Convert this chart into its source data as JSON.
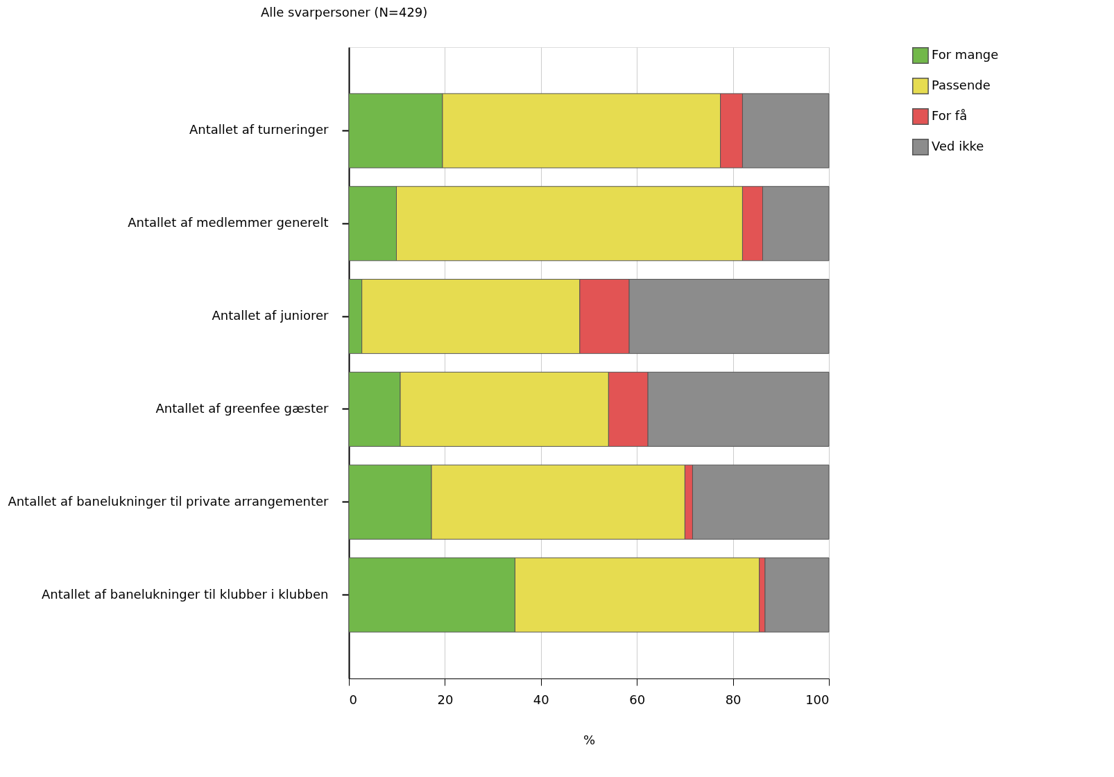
{
  "chart_data": {
    "type": "bar",
    "orientation": "horizontal",
    "stacked": true,
    "title": "Alle svarpersoner (N=429)",
    "xlabel": "%",
    "categories": [
      "Antallet af turneringer",
      "Antallet af medlemmer generelt",
      "Antallet af juniorer",
      "Antallet af greenfee gæster",
      "Antallet af banelukninger til private arrangementer",
      "Antallet af banelukninger til klubber i klubben"
    ],
    "series": [
      {
        "name": "For mange",
        "color": "#72b84a",
        "values": [
          19.5,
          9.9,
          2.7,
          10.7,
          17.2,
          34.6
        ]
      },
      {
        "name": "Passende",
        "color": "#e6dc50",
        "values": [
          57.9,
          72.1,
          45.4,
          43.4,
          52.8,
          50.9
        ]
      },
      {
        "name": "For få",
        "color": "#e25454",
        "values": [
          4.6,
          4.2,
          10.3,
          8.2,
          1.6,
          1.2
        ]
      },
      {
        "name": "Ved ikke",
        "color": "#8c8c8c",
        "values": [
          18.0,
          13.8,
          41.6,
          37.7,
          28.4,
          13.3
        ]
      }
    ],
    "xlim": [
      0,
      100
    ],
    "xticks": [
      0,
      20,
      40,
      60,
      80,
      100
    ],
    "grid": "x",
    "legend": "top right"
  }
}
